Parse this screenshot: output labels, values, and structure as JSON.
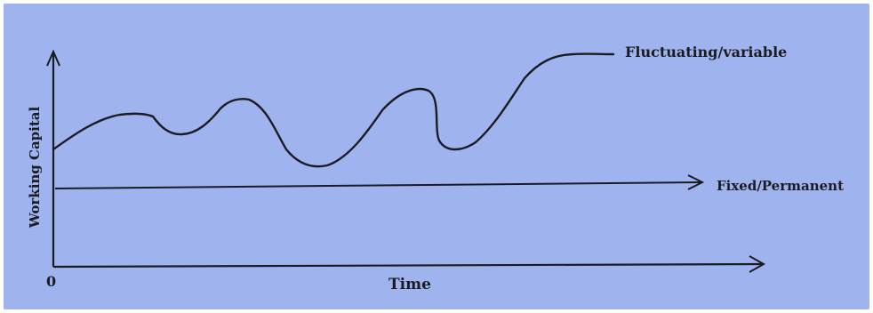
{
  "diagram": {
    "y_axis_label": "Working Capital",
    "x_axis_label": "Time",
    "origin_label": "0",
    "variable_label": "Fluctuating/variable",
    "fixed_label": "Fixed/Permanent",
    "colors": {
      "background": "#9fb4ef",
      "ink": "#1b1b22"
    }
  }
}
